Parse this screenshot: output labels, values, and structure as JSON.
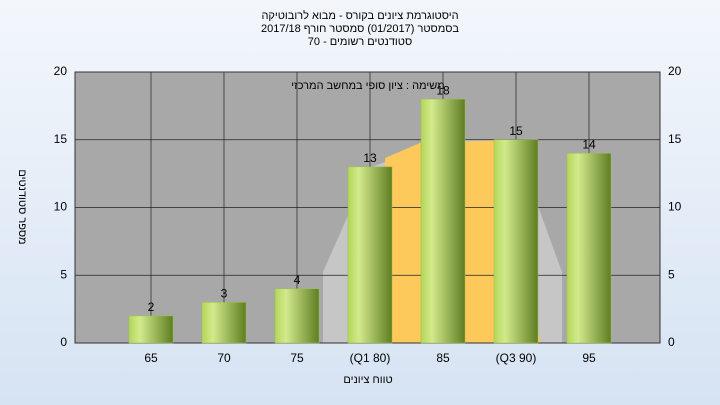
{
  "chart_data": {
    "type": "bar",
    "title": "היסטוגרמת ציונים בקורס - מבוא לרובוטיקה",
    "subtitle": "בסמסטר  (01/2017)  סמסטר חורף 2017/18",
    "subtitle2": "סטודנטים רשומים - 70",
    "annotation": "משימה : ציון סופי במחשב המרכזי",
    "x_label": "טווח ציונים",
    "y_label": "מספר סטודנטים",
    "categories": [
      "65",
      "70",
      "75",
      "(Q1 80)",
      "85",
      "(Q3 90)",
      "95"
    ],
    "values": [
      2,
      3,
      4,
      13,
      18,
      15,
      14
    ],
    "color": "#9cc04a",
    "ylim": [
      0,
      20
    ],
    "yticks": [
      0,
      5,
      10,
      15,
      20
    ],
    "grid": true
  }
}
